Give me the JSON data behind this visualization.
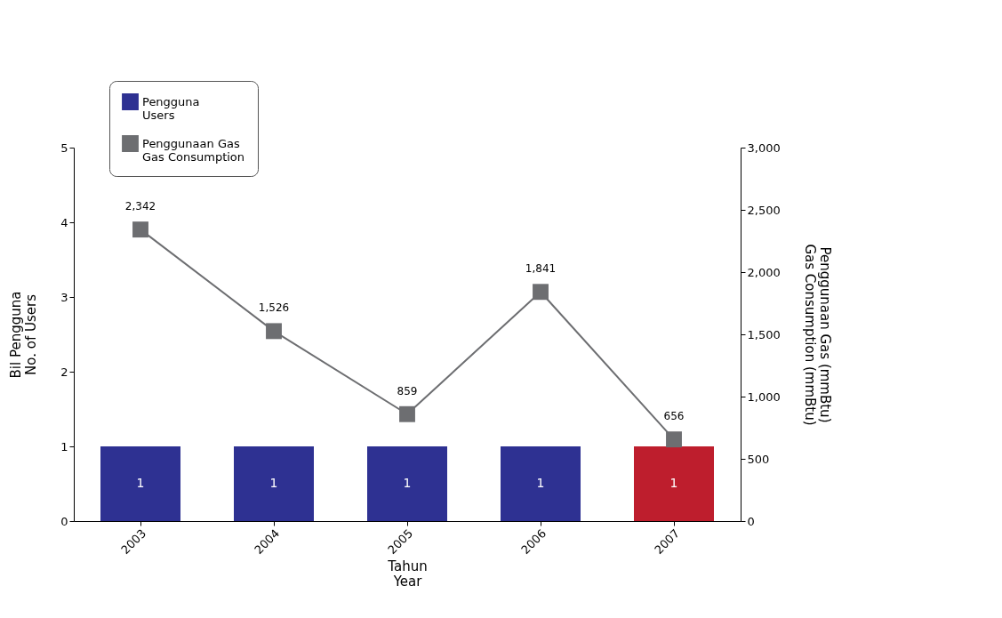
{
  "chart_data": {
    "type": "bar",
    "categories": [
      "2003",
      "2004",
      "2005",
      "2006",
      "2007"
    ],
    "xlabel": "Tahun\nYear",
    "ylabel": "Bil Pengguna\nNo. of Users",
    "y2label": "Penggunaan Gas (mmBtu)\nGas Consumption (mmBtu)",
    "ylim": [
      0,
      5
    ],
    "yticks": [
      0,
      1,
      2,
      3,
      4,
      5
    ],
    "y2lim": [
      0,
      3000
    ],
    "y2ticks": [
      0,
      500,
      {
        "value": 1000,
        "label": "1,000"
      },
      {
        "value": 1500,
        "label": "1,500"
      },
      {
        "value": 2000,
        "label": "2,000"
      },
      {
        "value": 2500,
        "label": "2,500"
      },
      {
        "value": 3000,
        "label": "3,000"
      }
    ],
    "series": [
      {
        "name": "Pengguna\nUsers",
        "color": "#2e3192",
        "colors": [
          "#2e3192",
          "#2e3192",
          "#2e3192",
          "#2e3192",
          "#be1e2d"
        ],
        "values": [
          1,
          1,
          1,
          1,
          1
        ]
      },
      {
        "name": "Penggunaan Gas\nGas Consumption",
        "type": "line",
        "axis": "y2",
        "color": "#6d6e71",
        "marker": "square",
        "values": [
          2342,
          1526,
          859,
          1841,
          656
        ],
        "value_labels": [
          "2,342",
          "1,526",
          "859",
          "1,841",
          "656"
        ]
      }
    ],
    "data_labels": true,
    "legend": "top left",
    "grid": false
  }
}
